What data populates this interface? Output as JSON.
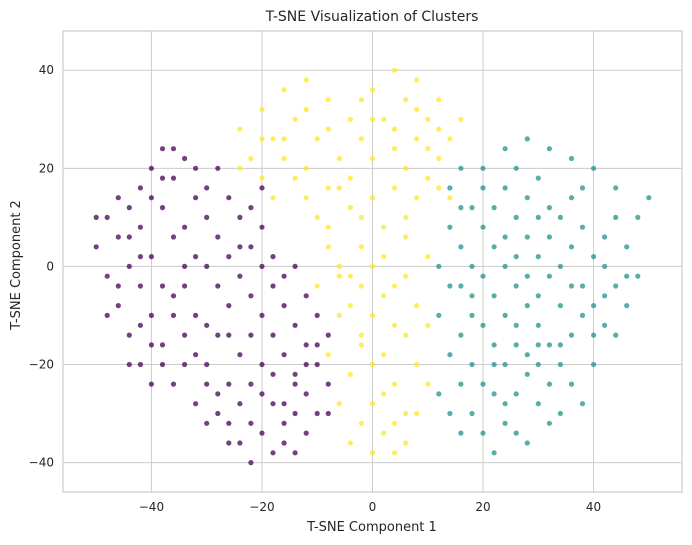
{
  "chart_data": {
    "type": "scatter",
    "title": "T-SNE Visualization of Clusters",
    "xlabel": "T-SNE Component 1",
    "ylabel": "T-SNE Component 2",
    "xlim": [
      -56,
      56
    ],
    "ylim": [
      -46,
      48
    ],
    "xticks": [
      -40,
      -20,
      0,
      20,
      40
    ],
    "yticks": [
      -40,
      -20,
      0,
      20,
      40
    ],
    "grid": true,
    "colors": {
      "purple": "#440154",
      "teal": "#21918c",
      "yellow": "#fde725"
    },
    "series": [
      {
        "color": "#440154",
        "points": [
          [
            -48,
            10
          ],
          [
            -46,
            6
          ],
          [
            -44,
            12
          ],
          [
            -42,
            16
          ],
          [
            -40,
            20
          ],
          [
            -38,
            24
          ],
          [
            -36,
            18
          ],
          [
            -34,
            22
          ],
          [
            -32,
            14
          ],
          [
            -30,
            10
          ],
          [
            -28,
            6
          ],
          [
            -26,
            2
          ],
          [
            -24,
            -2
          ],
          [
            -22,
            -6
          ],
          [
            -20,
            -10
          ],
          [
            -18,
            -14
          ],
          [
            -16,
            -18
          ],
          [
            -14,
            -22
          ],
          [
            -12,
            -26
          ],
          [
            -10,
            -30
          ],
          [
            -50,
            4
          ],
          [
            -48,
            -2
          ],
          [
            -46,
            -8
          ],
          [
            -44,
            -14
          ],
          [
            -42,
            -20
          ],
          [
            -40,
            -24
          ],
          [
            -38,
            -16
          ],
          [
            -36,
            -10
          ],
          [
            -34,
            -4
          ],
          [
            -32,
            2
          ],
          [
            -30,
            -20
          ],
          [
            -28,
            -26
          ],
          [
            -26,
            -32
          ],
          [
            -24,
            -36
          ],
          [
            -22,
            -40
          ],
          [
            -20,
            -34
          ],
          [
            -18,
            -28
          ],
          [
            -16,
            -36
          ],
          [
            -14,
            -38
          ],
          [
            -12,
            -34
          ],
          [
            -36,
            6
          ],
          [
            -34,
            0
          ],
          [
            -38,
            -4
          ],
          [
            -40,
            2
          ],
          [
            -42,
            8
          ],
          [
            -44,
            0
          ],
          [
            -46,
            -4
          ],
          [
            -30,
            16
          ],
          [
            -28,
            20
          ],
          [
            -26,
            14
          ],
          [
            -24,
            10
          ],
          [
            -22,
            4
          ],
          [
            -20,
            0
          ],
          [
            -18,
            -4
          ],
          [
            -16,
            -8
          ],
          [
            -14,
            -12
          ],
          [
            -12,
            -16
          ],
          [
            -10,
            -20
          ],
          [
            -8,
            -24
          ],
          [
            -8,
            -14
          ],
          [
            -32,
            -28
          ],
          [
            -30,
            -32
          ],
          [
            -28,
            -14
          ],
          [
            -26,
            -8
          ],
          [
            -24,
            -18
          ],
          [
            -22,
            -24
          ],
          [
            -20,
            -20
          ],
          [
            -18,
            -22
          ],
          [
            -16,
            -28
          ],
          [
            -14,
            -30
          ],
          [
            -40,
            -10
          ],
          [
            -42,
            -4
          ],
          [
            -44,
            -20
          ],
          [
            -36,
            -24
          ],
          [
            -38,
            12
          ],
          [
            -34,
            8
          ],
          [
            -32,
            -10
          ],
          [
            -30,
            0
          ],
          [
            -28,
            -4
          ],
          [
            -26,
            -14
          ],
          [
            -24,
            4
          ],
          [
            -22,
            -14
          ],
          [
            -20,
            8
          ],
          [
            -18,
            2
          ],
          [
            -16,
            -2
          ],
          [
            -14,
            0
          ],
          [
            -12,
            -6
          ],
          [
            -10,
            -10
          ],
          [
            -22,
            12
          ],
          [
            -20,
            16
          ],
          [
            -40,
            14
          ],
          [
            -38,
            18
          ],
          [
            -36,
            24
          ],
          [
            -34,
            -20
          ],
          [
            -32,
            20
          ],
          [
            -30,
            -12
          ],
          [
            -50,
            10
          ],
          [
            -48,
            -10
          ],
          [
            -46,
            14
          ],
          [
            -42,
            -12
          ],
          [
            -26,
            -24
          ],
          [
            -24,
            -28
          ],
          [
            -22,
            -32
          ],
          [
            -20,
            -26
          ],
          [
            -18,
            -38
          ],
          [
            -16,
            -32
          ],
          [
            -14,
            -24
          ],
          [
            -12,
            -20
          ],
          [
            -10,
            -16
          ],
          [
            -8,
            -30
          ],
          [
            -44,
            6
          ],
          [
            -42,
            2
          ],
          [
            -40,
            -16
          ],
          [
            -38,
            -20
          ],
          [
            -36,
            -6
          ],
          [
            -34,
            -14
          ],
          [
            -32,
            -18
          ],
          [
            -30,
            -24
          ],
          [
            -28,
            -30
          ],
          [
            -26,
            -36
          ]
        ]
      },
      {
        "color": "#21918c",
        "points": [
          [
            14,
            16
          ],
          [
            16,
            20
          ],
          [
            18,
            12
          ],
          [
            20,
            8
          ],
          [
            22,
            4
          ],
          [
            24,
            0
          ],
          [
            26,
            -4
          ],
          [
            28,
            -8
          ],
          [
            30,
            -12
          ],
          [
            32,
            -16
          ],
          [
            34,
            -20
          ],
          [
            36,
            -24
          ],
          [
            38,
            -28
          ],
          [
            40,
            -20
          ],
          [
            42,
            -12
          ],
          [
            44,
            -4
          ],
          [
            46,
            4
          ],
          [
            48,
            10
          ],
          [
            50,
            14
          ],
          [
            44,
            16
          ],
          [
            40,
            20
          ],
          [
            36,
            22
          ],
          [
            32,
            24
          ],
          [
            28,
            26
          ],
          [
            24,
            24
          ],
          [
            20,
            20
          ],
          [
            16,
            4
          ],
          [
            14,
            -4
          ],
          [
            12,
            -10
          ],
          [
            14,
            -18
          ],
          [
            16,
            -24
          ],
          [
            18,
            -30
          ],
          [
            20,
            -34
          ],
          [
            22,
            -38
          ],
          [
            24,
            -32
          ],
          [
            26,
            -26
          ],
          [
            28,
            -22
          ],
          [
            30,
            -28
          ],
          [
            32,
            -32
          ],
          [
            34,
            -30
          ],
          [
            12,
            0
          ],
          [
            14,
            8
          ],
          [
            16,
            12
          ],
          [
            18,
            -6
          ],
          [
            20,
            -12
          ],
          [
            22,
            -16
          ],
          [
            24,
            -20
          ],
          [
            26,
            -12
          ],
          [
            28,
            -2
          ],
          [
            30,
            2
          ],
          [
            32,
            6
          ],
          [
            34,
            10
          ],
          [
            36,
            14
          ],
          [
            38,
            8
          ],
          [
            40,
            2
          ],
          [
            42,
            -6
          ],
          [
            44,
            -14
          ],
          [
            46,
            -8
          ],
          [
            48,
            -2
          ],
          [
            36,
            -4
          ],
          [
            22,
            12
          ],
          [
            24,
            16
          ],
          [
            26,
            10
          ],
          [
            28,
            14
          ],
          [
            30,
            18
          ],
          [
            32,
            12
          ],
          [
            34,
            0
          ],
          [
            36,
            4
          ],
          [
            38,
            -10
          ],
          [
            40,
            -14
          ],
          [
            18,
            0
          ],
          [
            20,
            -2
          ],
          [
            22,
            -6
          ],
          [
            24,
            -10
          ],
          [
            26,
            -16
          ],
          [
            28,
            -18
          ],
          [
            30,
            -6
          ],
          [
            32,
            -2
          ],
          [
            34,
            -8
          ],
          [
            36,
            -14
          ],
          [
            16,
            -14
          ],
          [
            18,
            -20
          ],
          [
            20,
            -24
          ],
          [
            22,
            -26
          ],
          [
            24,
            -28
          ],
          [
            26,
            -34
          ],
          [
            28,
            -36
          ],
          [
            30,
            -20
          ],
          [
            32,
            -24
          ],
          [
            34,
            -16
          ],
          [
            20,
            16
          ],
          [
            26,
            20
          ],
          [
            30,
            10
          ],
          [
            38,
            16
          ],
          [
            42,
            6
          ],
          [
            44,
            10
          ],
          [
            46,
            -2
          ],
          [
            12,
            -26
          ],
          [
            14,
            -30
          ],
          [
            16,
            -34
          ],
          [
            38,
            -4
          ],
          [
            40,
            -8
          ],
          [
            42,
            0
          ],
          [
            24,
            6
          ],
          [
            26,
            2
          ],
          [
            28,
            6
          ],
          [
            30,
            -16
          ],
          [
            22,
            -20
          ],
          [
            18,
            -10
          ],
          [
            16,
            -4
          ]
        ]
      },
      {
        "color": "#fde725",
        "points": [
          [
            -24,
            28
          ],
          [
            -20,
            32
          ],
          [
            -16,
            36
          ],
          [
            -12,
            38
          ],
          [
            -8,
            34
          ],
          [
            -4,
            30
          ],
          [
            0,
            36
          ],
          [
            4,
            40
          ],
          [
            8,
            38
          ],
          [
            12,
            34
          ],
          [
            16,
            30
          ],
          [
            -22,
            22
          ],
          [
            -18,
            26
          ],
          [
            -14,
            30
          ],
          [
            -10,
            26
          ],
          [
            -6,
            22
          ],
          [
            -2,
            26
          ],
          [
            2,
            30
          ],
          [
            6,
            34
          ],
          [
            10,
            30
          ],
          [
            14,
            26
          ],
          [
            -20,
            18
          ],
          [
            -16,
            22
          ],
          [
            -12,
            20
          ],
          [
            -8,
            16
          ],
          [
            -4,
            18
          ],
          [
            0,
            22
          ],
          [
            4,
            24
          ],
          [
            8,
            26
          ],
          [
            12,
            22
          ],
          [
            -10,
            10
          ],
          [
            -8,
            4
          ],
          [
            -6,
            -2
          ],
          [
            -4,
            -8
          ],
          [
            -2,
            -14
          ],
          [
            0,
            -20
          ],
          [
            2,
            -26
          ],
          [
            4,
            -32
          ],
          [
            6,
            -36
          ],
          [
            8,
            -30
          ],
          [
            -8,
            8
          ],
          [
            -4,
            12
          ],
          [
            0,
            14
          ],
          [
            4,
            16
          ],
          [
            8,
            14
          ],
          [
            -6,
            0
          ],
          [
            -2,
            4
          ],
          [
            2,
            8
          ],
          [
            6,
            6
          ],
          [
            10,
            2
          ],
          [
            -10,
            -4
          ],
          [
            -6,
            -10
          ],
          [
            -2,
            -16
          ],
          [
            2,
            -18
          ],
          [
            6,
            -14
          ],
          [
            8,
            -20
          ],
          [
            10,
            -24
          ],
          [
            -4,
            -22
          ],
          [
            0,
            -28
          ],
          [
            4,
            -24
          ],
          [
            -6,
            -28
          ],
          [
            -2,
            -32
          ],
          [
            2,
            -34
          ],
          [
            6,
            -30
          ],
          [
            -4,
            -36
          ],
          [
            0,
            -38
          ],
          [
            4,
            -38
          ],
          [
            -8,
            -18
          ],
          [
            -4,
            -2
          ],
          [
            0,
            0
          ],
          [
            2,
            -6
          ],
          [
            6,
            -2
          ],
          [
            8,
            -8
          ],
          [
            4,
            -12
          ],
          [
            0,
            -10
          ],
          [
            -2,
            -4
          ],
          [
            10,
            -12
          ],
          [
            -12,
            14
          ],
          [
            -14,
            18
          ],
          [
            -18,
            14
          ],
          [
            10,
            18
          ],
          [
            12,
            16
          ],
          [
            14,
            14
          ],
          [
            -2,
            10
          ],
          [
            2,
            2
          ],
          [
            4,
            -4
          ],
          [
            6,
            10
          ],
          [
            -6,
            16
          ],
          [
            -12,
            32
          ],
          [
            -8,
            28
          ],
          [
            0,
            30
          ],
          [
            4,
            28
          ],
          [
            8,
            32
          ],
          [
            12,
            28
          ],
          [
            -20,
            26
          ],
          [
            -24,
            20
          ],
          [
            -16,
            26
          ],
          [
            -2,
            34
          ],
          [
            6,
            20
          ],
          [
            10,
            24
          ]
        ]
      }
    ]
  }
}
